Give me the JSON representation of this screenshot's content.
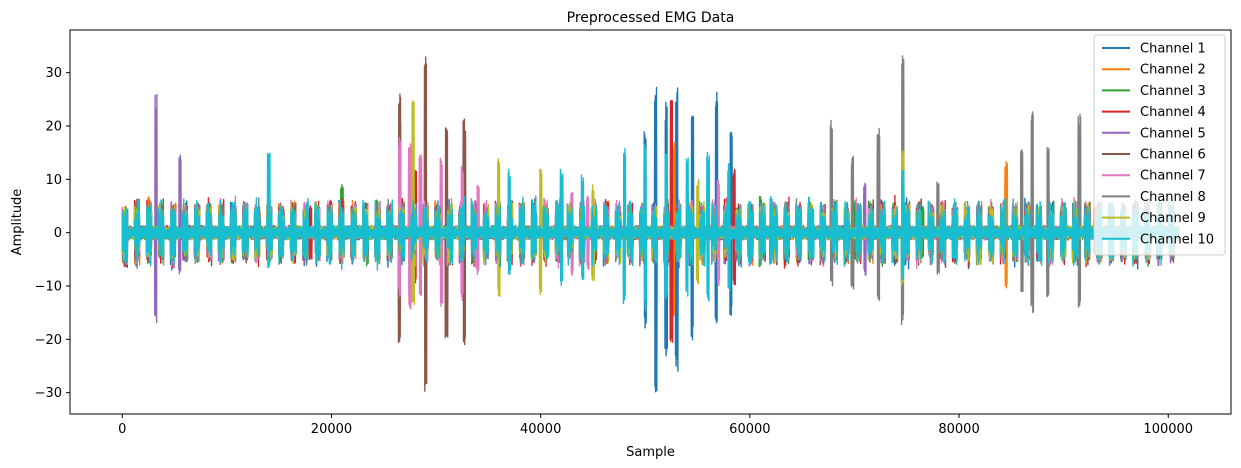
{
  "chart_data": {
    "type": "line",
    "title": "Preprocessed EMG Data",
    "xlabel": "Sample",
    "ylabel": "Amplitude",
    "xlim": [
      -5000,
      106000
    ],
    "ylim": [
      -34,
      38
    ],
    "xticks": [
      0,
      20000,
      40000,
      60000,
      80000,
      100000
    ],
    "xtick_labels": [
      "0",
      "20000",
      "40000",
      "60000",
      "80000",
      "100000"
    ],
    "yticks": [
      -30,
      -20,
      -10,
      0,
      10,
      20,
      30
    ],
    "ytick_labels": [
      "−30",
      "−20",
      "−10",
      "0",
      "10",
      "20",
      "30"
    ],
    "grid": false,
    "legend_position": "top-right",
    "x_range": [
      0,
      101000
    ],
    "series": [
      {
        "name": "Channel 1",
        "color": "#1f77b4",
        "bursts": [
          [
            51000,
            28.2,
            -30.5
          ],
          [
            52000,
            24.5,
            -24.0
          ],
          [
            53000,
            27.5,
            -26.0
          ],
          [
            54500,
            22.0,
            -20.5
          ],
          [
            56800,
            26.5,
            -18.5
          ],
          [
            58200,
            20.0,
            -15.5
          ],
          [
            50000,
            20.0,
            -18.0
          ]
        ]
      },
      {
        "name": "Channel 2",
        "color": "#ff7f0e",
        "bursts": [
          [
            84500,
            13.8,
            -10.5
          ],
          [
            52700,
            18.0,
            -16.0
          ],
          [
            2500,
            7.0,
            -5.0
          ],
          [
            30000,
            6.0,
            -5.0
          ],
          [
            93000,
            5.0,
            -4.0
          ]
        ]
      },
      {
        "name": "Channel 3",
        "color": "#2ca02c",
        "bursts": [
          [
            21000,
            9.0,
            -6.0
          ],
          [
            61000,
            7.0,
            -6.5
          ],
          [
            70000,
            6.0,
            -5.0
          ],
          [
            76500,
            5.0,
            -5.0
          ]
        ]
      },
      {
        "name": "Channel 4",
        "color": "#d62728",
        "bursts": [
          [
            26500,
            22.0,
            -15.0
          ],
          [
            52500,
            27.0,
            -22.0
          ],
          [
            28000,
            12.0,
            -10.0
          ],
          [
            18000,
            5.0,
            -5.0
          ],
          [
            58500,
            12.0,
            -10.0
          ]
        ]
      },
      {
        "name": "Channel 5",
        "color": "#9467bd",
        "bursts": [
          [
            3200,
            26.3,
            -17.5
          ],
          [
            5500,
            14.7,
            -8.0
          ],
          [
            71000,
            10.0,
            -8.0
          ]
        ]
      },
      {
        "name": "Channel 6",
        "color": "#8c564b",
        "bursts": [
          [
            26500,
            27.5,
            -21.0
          ],
          [
            29000,
            34.4,
            -30.0
          ],
          [
            31000,
            20.0,
            -20.0
          ],
          [
            32700,
            21.5,
            -21.0
          ],
          [
            27500,
            15.0,
            -12.0
          ]
        ]
      },
      {
        "name": "Channel 7",
        "color": "#e377c2",
        "bursts": [
          [
            26500,
            18.5,
            -12.0
          ],
          [
            27500,
            17.0,
            -14.5
          ],
          [
            28500,
            15.0,
            -12.0
          ],
          [
            30500,
            14.0,
            -14.0
          ],
          [
            32500,
            13.0,
            -13.0
          ],
          [
            34000,
            9.0,
            -8.0
          ],
          [
            43000,
            8.0,
            -8.0
          ],
          [
            44500,
            7.0,
            -7.0
          ],
          [
            57000,
            10.0,
            -10.0
          ]
        ]
      },
      {
        "name": "Channel 8",
        "color": "#7f7f7f",
        "bursts": [
          [
            67800,
            21.8,
            -10.0
          ],
          [
            69800,
            14.5,
            -11.0
          ],
          [
            72300,
            20.0,
            -13.0
          ],
          [
            74600,
            34.7,
            -17.5
          ],
          [
            87000,
            23.0,
            -15.0
          ],
          [
            86000,
            17.0,
            -12.0
          ],
          [
            91500,
            23.0,
            -15.0
          ],
          [
            88500,
            16.0,
            -12.0
          ],
          [
            78000,
            10.0,
            -8.0
          ]
        ]
      },
      {
        "name": "Channel 9",
        "color": "#bcbd22",
        "bursts": [
          [
            27800,
            25.0,
            -14.0
          ],
          [
            36000,
            15.0,
            -12.0
          ],
          [
            40000,
            12.0,
            -12.0
          ],
          [
            45000,
            9.0,
            -9.0
          ],
          [
            74600,
            16.0,
            -10.0
          ],
          [
            55000,
            10.0,
            -10.0
          ]
        ]
      },
      {
        "name": "Channel 10",
        "color": "#17becf",
        "bursts": [
          [
            14000,
            15.2,
            -7.0
          ],
          [
            37000,
            12.0,
            -8.0
          ],
          [
            42000,
            12.0,
            -10.0
          ],
          [
            44000,
            11.0,
            -9.0
          ],
          [
            48000,
            16.0,
            -13.5
          ],
          [
            50000,
            17.0,
            -15.0
          ],
          [
            52000,
            16.0,
            -13.0
          ],
          [
            54000,
            14.0,
            -12.0
          ],
          [
            56000,
            15.5,
            -13.0
          ],
          [
            58000,
            13.0,
            -11.0
          ],
          [
            74600,
            12.0,
            -9.0
          ],
          [
            60000,
            6.0,
            -6.0
          ],
          [
            62000,
            7.0,
            -6.0
          ],
          [
            66000,
            5.0,
            -5.0
          ]
        ]
      }
    ]
  }
}
